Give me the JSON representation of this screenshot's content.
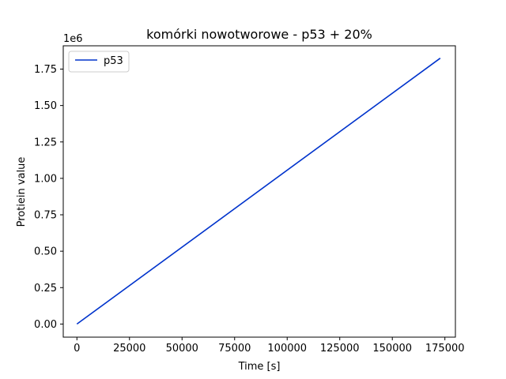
{
  "chart_data": {
    "type": "line",
    "title": "komórki nowotworowe - p53 + 20%",
    "xlabel": "Time [s]",
    "ylabel": "Protiein value",
    "y_offset_label": "1e6",
    "xlim": [
      -6500,
      180000
    ],
    "ylim": [
      -0.09,
      1.91
    ],
    "x_ticks": [
      0,
      25000,
      50000,
      75000,
      100000,
      125000,
      150000,
      175000
    ],
    "x_tick_labels": [
      "0",
      "25000",
      "50000",
      "75000",
      "100000",
      "125000",
      "150000",
      "175000"
    ],
    "y_ticks": [
      0.0,
      0.25,
      0.5,
      0.75,
      1.0,
      1.25,
      1.5,
      1.75
    ],
    "y_tick_labels": [
      "0.00",
      "0.25",
      "0.50",
      "0.75",
      "1.00",
      "1.25",
      "1.50",
      "1.75"
    ],
    "grid": false,
    "legend_position": "upper-left",
    "series": [
      {
        "name": "p53",
        "color": "#0033cc",
        "x": [
          0,
          172800
        ],
        "y": [
          0,
          1.825
        ]
      }
    ]
  }
}
